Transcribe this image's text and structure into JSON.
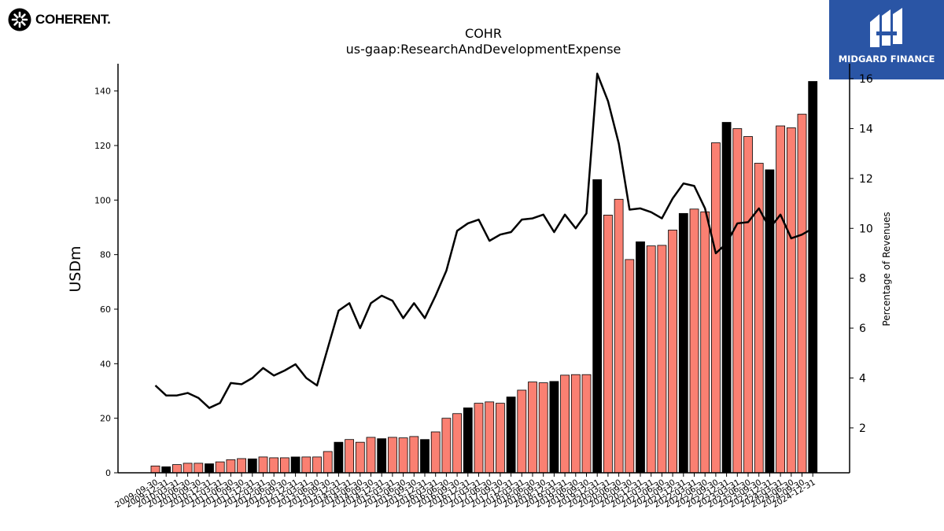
{
  "logos": {
    "left": {
      "text": "COHERENT."
    },
    "right": {
      "text": "MIDGARD FINANCE",
      "background": "#2a55a5"
    }
  },
  "chart_data": {
    "type": "bar",
    "title": "COHR",
    "subtitle": "us-gaap:ResearchAndDevelopmentExpense",
    "xlabel": "",
    "ylabel": "USDm",
    "y2label": "Percentage of Revenues",
    "ylim": [
      0,
      150
    ],
    "y2lim": [
      0.2,
      16.6
    ],
    "yticks": [
      0,
      20,
      40,
      60,
      80,
      100,
      120,
      140
    ],
    "y2ticks": [
      2,
      4,
      6,
      8,
      10,
      12,
      14,
      16
    ],
    "grid": false,
    "colors": {
      "quarter": "#fa8072",
      "fiscal_year_end": "#000000",
      "line": "#000000"
    },
    "categories": [
      "2009-09-30",
      "2009-12-31",
      "2010-03-31",
      "2010-06-30",
      "2010-09-30",
      "2010-12-31",
      "2011-03-31",
      "2011-06-30",
      "2011-09-30",
      "2011-12-31",
      "2012-03-31",
      "2012-06-30",
      "2012-09-30",
      "2012-12-31",
      "2013-03-31",
      "2013-06-30",
      "2013-09-30",
      "2013-12-31",
      "2014-03-31",
      "2014-06-30",
      "2014-09-30",
      "2014-12-31",
      "2015-03-31",
      "2015-06-30",
      "2015-09-30",
      "2015-12-31",
      "2016-03-31",
      "2016-06-30",
      "2016-09-30",
      "2016-12-31",
      "2017-03-31",
      "2017-06-30",
      "2017-09-30",
      "2017-12-31",
      "2018-03-31",
      "2018-06-30",
      "2018-09-30",
      "2018-12-31",
      "2019-03-31",
      "2019-06-30",
      "2019-09-30",
      "2019-12-31",
      "2020-03-31",
      "2020-06-30",
      "2020-09-30",
      "2020-12-31",
      "2021-03-31",
      "2021-06-30",
      "2021-09-30",
      "2021-12-31",
      "2022-03-31",
      "2022-06-30",
      "2022-09-30",
      "2022-12-31",
      "2023-03-31",
      "2023-06-30",
      "2023-09-30",
      "2023-12-31",
      "2024-03-31",
      "2024-06-30",
      "2024-09-30",
      "2024-12-31"
    ],
    "series": [
      {
        "kind": "bar",
        "values": [
          2.5,
          2.2,
          3.0,
          3.5,
          3.5,
          3.3,
          4.0,
          4.8,
          5.2,
          5.1,
          5.8,
          5.5,
          5.5,
          5.8,
          5.8,
          5.8,
          7.8,
          11.2,
          12.2,
          11.2,
          13.0,
          12.5,
          13.0,
          12.8,
          13.3,
          12.2,
          15.0,
          20.0,
          21.7,
          23.8,
          25.5,
          26.0,
          25.5,
          27.8,
          30.3,
          33.3,
          33.0,
          33.5,
          35.8,
          36.0,
          36.0,
          107.5,
          94.5,
          100.3,
          78.2,
          84.7,
          83.2,
          83.4,
          89.0,
          95.1,
          96.7,
          95.7,
          121.0,
          128.5,
          126.2,
          123.3,
          113.5,
          111.1,
          127.2,
          126.5,
          131.5,
          143.5
        ],
        "fiscal_year_end": [
          false,
          true,
          false,
          false,
          false,
          true,
          false,
          false,
          false,
          true,
          false,
          false,
          false,
          true,
          false,
          false,
          false,
          true,
          false,
          false,
          false,
          true,
          false,
          false,
          false,
          true,
          false,
          false,
          false,
          true,
          false,
          false,
          false,
          true,
          false,
          false,
          false,
          true,
          false,
          false,
          false,
          true,
          false,
          false,
          false,
          true,
          false,
          false,
          false,
          true,
          false,
          false,
          false,
          true,
          false,
          false,
          false,
          true,
          false,
          false,
          false,
          true
        ]
      },
      {
        "kind": "line",
        "axis": "right",
        "values": [
          3.7,
          3.3,
          3.3,
          3.4,
          3.2,
          2.8,
          3.0,
          3.8,
          3.75,
          4.0,
          4.4,
          4.1,
          4.3,
          4.55,
          4.0,
          3.7,
          5.2,
          6.7,
          7.0,
          6.0,
          7.0,
          7.3,
          7.1,
          6.4,
          7.0,
          6.4,
          7.3,
          8.3,
          9.9,
          10.2,
          10.35,
          9.5,
          9.75,
          9.85,
          10.35,
          10.4,
          10.55,
          9.85,
          10.55,
          10.0,
          10.6,
          16.2,
          15.1,
          13.4,
          10.75,
          10.8,
          10.65,
          10.4,
          11.2,
          11.8,
          11.7,
          10.8,
          9.0,
          9.4,
          10.2,
          10.25,
          10.8,
          10.0,
          10.55,
          9.6,
          9.75,
          10.0
        ]
      }
    ]
  }
}
